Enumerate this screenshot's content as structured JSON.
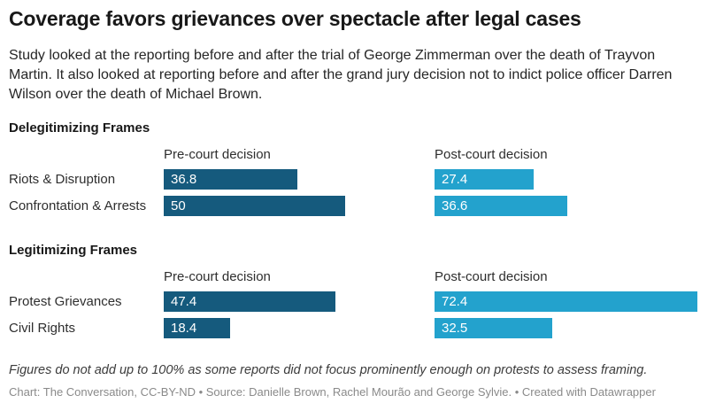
{
  "header": {
    "title": "Coverage favors grievances over spectacle after legal cases",
    "description": "Study looked at the reporting before and after the trial of George Zimmerman over the death of Trayvon Martin. It also looked at reporting before and after the grand jury decision not to indict police officer Darren Wilson over the death of Michael Brown."
  },
  "chart_data": {
    "type": "bar",
    "orientation": "horizontal",
    "columns": [
      "Pre-court decision",
      "Post-court decision"
    ],
    "xlim": [
      0,
      72.4
    ],
    "grid": false,
    "legend_position": "column-headers",
    "colors": {
      "pre": "#155a7d",
      "post": "#23a2cd"
    },
    "sections": [
      {
        "title": "Delegitimizing Frames",
        "rows": [
          {
            "label": "Riots & Disruption",
            "pre": 36.8,
            "pre_label": "36.8",
            "post": 27.4,
            "post_label": "27.4"
          },
          {
            "label": "Confrontation & Arrests",
            "pre": 50,
            "pre_label": "50",
            "post": 36.6,
            "post_label": "36.6"
          }
        ]
      },
      {
        "title": "Legitimizing Frames",
        "rows": [
          {
            "label": "Protest Grievances",
            "pre": 47.4,
            "pre_label": "47.4",
            "post": 72.4,
            "post_label": "72.4"
          },
          {
            "label": "Civil Rights",
            "pre": 18.4,
            "pre_label": "18.4",
            "post": 32.5,
            "post_label": "32.5"
          }
        ]
      }
    ]
  },
  "footer": {
    "note": "Figures do not add up to 100% as some reports did not focus prominently enough on protests to assess framing.",
    "credit": "Chart: The Conversation, CC-BY-ND • Source: Danielle Brown, Rachel Mourão and George Sylvie. • Created with Datawrapper"
  }
}
